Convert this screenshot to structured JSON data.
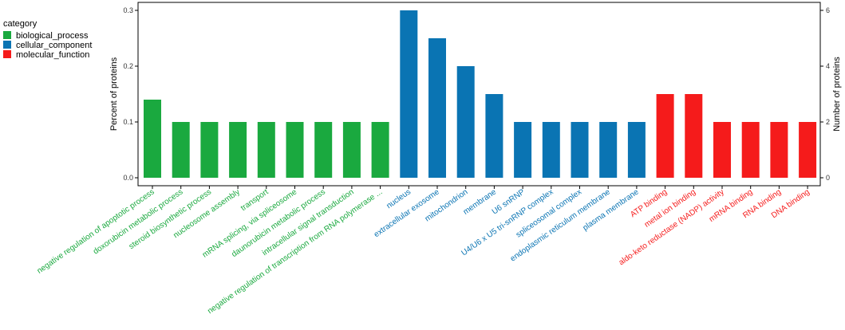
{
  "chart_data": {
    "type": "bar",
    "legend": {
      "title": "category",
      "placement": "top-left",
      "items": [
        {
          "name": "biological_process",
          "color": "#1aa93f"
        },
        {
          "name": "cellular_component",
          "color": "#0a74b3"
        },
        {
          "name": "molecular_function",
          "color": "#f51b1b"
        }
      ]
    },
    "ylabel_left": "Percent of proteins",
    "ylabel_right": "Number of proteins",
    "ylim_left": [
      0,
      0.3
    ],
    "ylim_right": [
      0,
      6
    ],
    "left_ticks": [
      "0.0",
      "0.1",
      "0.2",
      "0.3"
    ],
    "right_ticks": [
      "0",
      "2",
      "4",
      "6"
    ],
    "grid": false,
    "categories": [
      "negative regulation of apoptotic process",
      "doxorubicin metabolic process",
      "steroid biosynthetic process",
      "nucleosome assembly",
      "transport",
      "mRNA splicing, via spliceosome",
      "daunorubicin metabolic process",
      "intracellular signal transduction",
      "negative regulation of transcription from RNA polymerase ...",
      "nucleus",
      "extracellular exosome",
      "mitochondrion",
      "membrane",
      "U6 snRNP",
      "U4/U6 x U5 tri-snRNP complex",
      "spliceosomal complex",
      "endoplasmic reticulum membrane",
      "plasma membrane",
      "ATP binding",
      "metal ion binding",
      "aldo-keto reductase (NADP) activity",
      "mRNA binding",
      "RNA binding",
      "DNA binding"
    ],
    "groups": [
      "biological_process",
      "biological_process",
      "biological_process",
      "biological_process",
      "biological_process",
      "biological_process",
      "biological_process",
      "biological_process",
      "biological_process",
      "cellular_component",
      "cellular_component",
      "cellular_component",
      "cellular_component",
      "cellular_component",
      "cellular_component",
      "cellular_component",
      "cellular_component",
      "cellular_component",
      "molecular_function",
      "molecular_function",
      "molecular_function",
      "molecular_function",
      "molecular_function",
      "molecular_function"
    ],
    "values": [
      0.14,
      0.1,
      0.1,
      0.1,
      0.1,
      0.1,
      0.1,
      0.1,
      0.1,
      0.3,
      0.25,
      0.2,
      0.15,
      0.1,
      0.1,
      0.1,
      0.1,
      0.1,
      0.15,
      0.15,
      0.1,
      0.1,
      0.1,
      0.1
    ]
  }
}
